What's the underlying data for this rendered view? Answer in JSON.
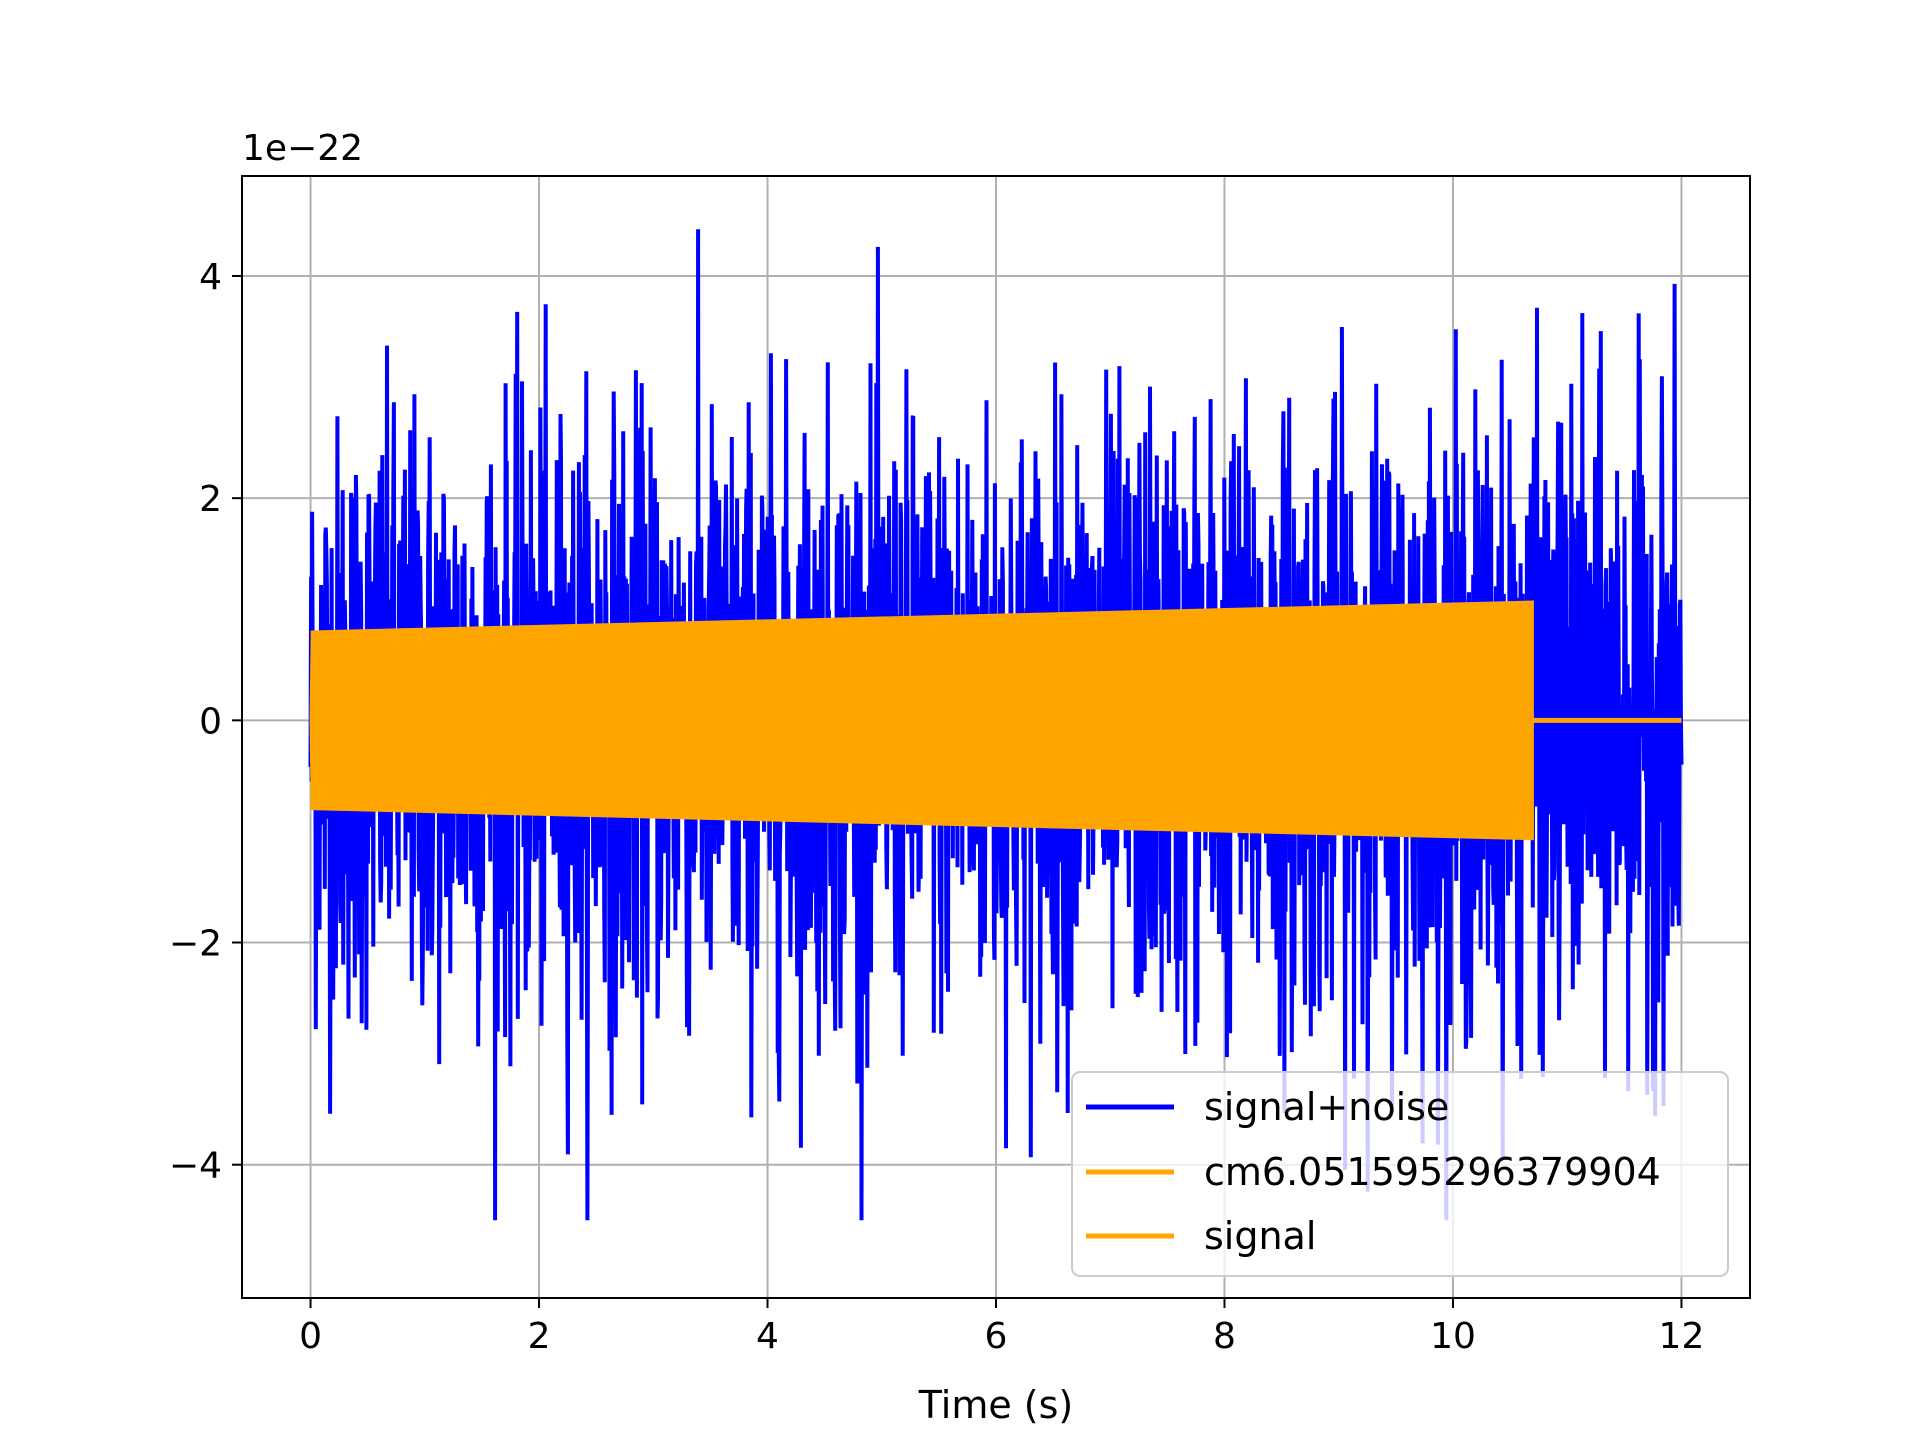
{
  "chart_data": {
    "type": "line",
    "title": "",
    "xlabel": "Time (s)",
    "ylabel": "",
    "y_offset_label": "1e−22",
    "xlim": [
      -0.6,
      12.6
    ],
    "ylim": [
      -5.2,
      4.9
    ],
    "x_ticks": [
      0,
      2,
      4,
      6,
      8,
      10,
      12
    ],
    "y_ticks": [
      -4,
      -2,
      0,
      2,
      4
    ],
    "x_tick_labels": [
      "0",
      "2",
      "4",
      "6",
      "8",
      "10",
      "12"
    ],
    "y_tick_labels": [
      "−4",
      "−2",
      "0",
      "2",
      "4"
    ],
    "grid": true,
    "legend_position": "lower right",
    "series": [
      {
        "name": "signal+noise",
        "color": "#0000ff",
        "x_range": [
          0,
          12
        ],
        "description_values": {
          "typical_amplitude": 2.6,
          "max": 4.5,
          "min": -4.5
        }
      },
      {
        "name": "cm6.051595296379904",
        "color": "#ffa500",
        "x_range": [
          0,
          10.7
        ],
        "envelope": {
          "x": [
            0,
            10.7
          ],
          "amplitude": [
            0.8,
            1.07
          ]
        }
      },
      {
        "name": "signal",
        "color": "#ffa500",
        "x_range": [
          0,
          12
        ],
        "envelope": {
          "x": [
            0,
            10.7
          ],
          "amplitude": [
            0.8,
            1.07
          ]
        },
        "zero_after": 10.7
      }
    ]
  }
}
